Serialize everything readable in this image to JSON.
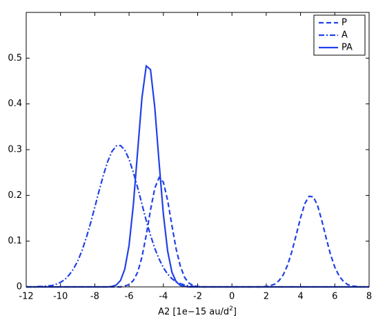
{
  "chart_data": {
    "type": "line",
    "xlabel": "A2 [1e−15 au/d",
    "xlabel_sup": "2",
    "xlabel_end": "]",
    "x": [
      -12,
      -11.75,
      -11.5,
      -11.25,
      -11,
      -10.75,
      -10.5,
      -10.25,
      -10,
      -9.75,
      -9.5,
      -9.25,
      -9,
      -8.75,
      -8.5,
      -8.25,
      -8,
      -7.75,
      -7.5,
      -7.25,
      -7,
      -6.75,
      -6.5,
      -6.25,
      -6,
      -5.75,
      -5.5,
      -5.25,
      -5,
      -4.75,
      -4.5,
      -4.25,
      -4,
      -3.75,
      -3.5,
      -3.25,
      -3,
      -2.75,
      -2.5,
      -2.25,
      -2,
      -1.75,
      -1.5,
      -1.25,
      -1,
      -0.75,
      -0.5,
      -0.25,
      0,
      0.25,
      0.5,
      0.75,
      1,
      1.25,
      1.5,
      1.75,
      2,
      2.25,
      2.5,
      2.75,
      3,
      3.25,
      3.5,
      3.75,
      4,
      4.25,
      4.5,
      4.75,
      5,
      5.25,
      5.5,
      5.75,
      6,
      6.25,
      6.5,
      6.75,
      7,
      7.25,
      7.5,
      7.75,
      8
    ],
    "series": [
      {
        "name": "P",
        "color": "#2040e8",
        "linestyle": "dashed",
        "values": [
          0,
          0,
          0,
          0,
          0,
          0,
          0,
          0,
          0,
          0,
          0,
          0,
          0,
          0,
          0,
          0,
          0,
          0,
          0,
          0,
          0,
          0,
          0,
          0.002,
          0.005,
          0.014,
          0.032,
          0.065,
          0.113,
          0.168,
          0.216,
          0.239,
          0.229,
          0.189,
          0.134,
          0.082,
          0.044,
          0.02,
          0.008,
          0.003,
          0.001,
          0,
          0,
          0,
          0,
          0,
          0,
          0,
          0,
          0,
          0,
          0,
          0,
          0,
          0,
          0,
          0.001,
          0.003,
          0.006,
          0.014,
          0.027,
          0.048,
          0.078,
          0.114,
          0.151,
          0.182,
          0.198,
          0.197,
          0.177,
          0.144,
          0.106,
          0.071,
          0.043,
          0.024,
          0.012,
          0.005,
          0.002,
          0.001,
          0,
          0,
          0
        ]
      },
      {
        "name": "A",
        "color": "#2040e8",
        "linestyle": "dashdot",
        "values": [
          0,
          0,
          0,
          0.001,
          0.001,
          0.002,
          0.003,
          0.006,
          0.01,
          0.016,
          0.026,
          0.039,
          0.056,
          0.079,
          0.107,
          0.139,
          0.174,
          0.21,
          0.244,
          0.274,
          0.296,
          0.308,
          0.309,
          0.299,
          0.279,
          0.25,
          0.217,
          0.181,
          0.145,
          0.113,
          0.084,
          0.061,
          0.042,
          0.028,
          0.018,
          0.011,
          0.007,
          0.004,
          0.002,
          0.001,
          0.001,
          0,
          0,
          0,
          0,
          0,
          0,
          0,
          0,
          0,
          0,
          0,
          0,
          0,
          0,
          0,
          0,
          0,
          0,
          0,
          0,
          0,
          0,
          0,
          0,
          0,
          0,
          0,
          0,
          0,
          0,
          0,
          0,
          0,
          0,
          0,
          0,
          0,
          0,
          0,
          0
        ]
      },
      {
        "name": "PA",
        "color": "#2040e8",
        "linestyle": "solid",
        "values": [
          0,
          0,
          0,
          0,
          0,
          0,
          0,
          0,
          0,
          0,
          0,
          0,
          0,
          0,
          0,
          0,
          0,
          0,
          0,
          0,
          0.001,
          0.004,
          0.014,
          0.039,
          0.091,
          0.18,
          0.297,
          0.413,
          0.483,
          0.475,
          0.392,
          0.272,
          0.159,
          0.078,
          0.032,
          0.011,
          0.003,
          0.001,
          0,
          0,
          0,
          0,
          0,
          0,
          0,
          0,
          0,
          0,
          0,
          0,
          0,
          0,
          0,
          0,
          0,
          0,
          0,
          0,
          0,
          0,
          0,
          0,
          0,
          0,
          0,
          0,
          0,
          0,
          0,
          0,
          0,
          0,
          0,
          0,
          0,
          0,
          0,
          0,
          0,
          0,
          0
        ]
      }
    ],
    "xlim": [
      -12,
      8
    ],
    "xticks": [
      -12,
      -10,
      -8,
      -6,
      -4,
      -2,
      0,
      2,
      4,
      6,
      8
    ],
    "ylim": [
      0,
      0.6
    ],
    "yticks": [
      0,
      0.1,
      0.2,
      0.3,
      0.4,
      0.5
    ],
    "grid": false,
    "legend": "upper right"
  }
}
